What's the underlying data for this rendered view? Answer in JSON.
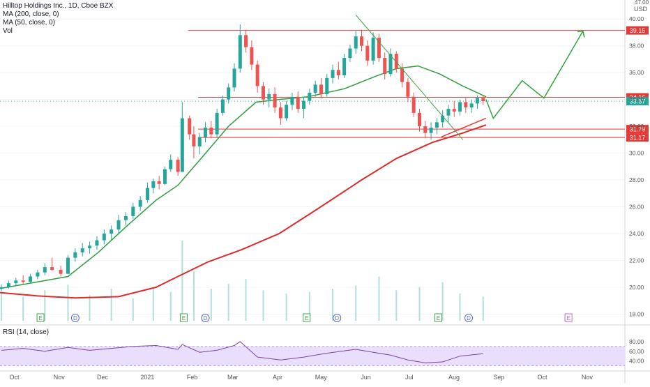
{
  "legend": {
    "title": "Hilltop Holdings Inc., 1D, Cboe BZX",
    "ma200": "MA (200, close, 0)",
    "ma50": "MA (50, close, 0)",
    "vol": "Vol",
    "rsi": "RSI (14, close)"
  },
  "price_axis": {
    "currency": "USD",
    "top_partial": "47.00",
    "ticks": [
      "40.00",
      "38.00",
      "36.00",
      "34.00",
      "32.00",
      "30.00",
      "28.00",
      "26.00",
      "24.00",
      "22.00",
      "20.00",
      "18.00"
    ]
  },
  "rsi_axis": {
    "ticks": [
      "80.00",
      "60.00",
      "40.00"
    ]
  },
  "time_axis": {
    "labels": [
      "Oct",
      "Nov",
      "Dec",
      "2021",
      "Feb",
      "Mar",
      "Apr",
      "May",
      "Jun",
      "Jul",
      "Aug",
      "Sep",
      "Oct",
      "Nov"
    ]
  },
  "colors": {
    "up": "#26a69a",
    "down": "#ef5350",
    "ma50": "#2e9e3a",
    "ma200": "#e02a2a",
    "level": "#e53935",
    "rsi": "#7e3fa6",
    "rsi_band": "#e9defc",
    "projection": "#2fa53a",
    "trend": "#43a047",
    "last_price": "#26a69a"
  },
  "chart_data": {
    "type": "candlestick",
    "title": "Hilltop Holdings Inc., 1D, Cboe BZX",
    "ylabel": "USD",
    "ylim": [
      17.5,
      41.0
    ],
    "x_range": [
      "2020-09-24",
      "2021-11-30"
    ],
    "last_price": 33.87,
    "levels": [
      {
        "label": "39.15",
        "value": 39.15,
        "from": "2021-02-01"
      },
      {
        "label": "34.16",
        "value": 34.16,
        "from": "2021-02-08"
      },
      {
        "label": "31.79",
        "value": 31.79,
        "from": "2021-02-08"
      },
      {
        "label": "31.17",
        "value": 31.17,
        "from": "2021-02-08"
      }
    ],
    "ma50": [
      [
        "2020-09-24",
        19.9
      ],
      [
        "2020-10-20",
        20.4
      ],
      [
        "2020-11-10",
        20.8
      ],
      [
        "2020-12-01",
        22.6
      ],
      [
        "2020-12-20",
        24.5
      ],
      [
        "2021-01-10",
        26.5
      ],
      [
        "2021-01-25",
        27.6
      ],
      [
        "2021-02-10",
        29.6
      ],
      [
        "2021-03-01",
        32.0
      ],
      [
        "2021-03-20",
        33.8
      ],
      [
        "2021-04-05",
        34.0
      ],
      [
        "2021-04-25",
        34.2
      ],
      [
        "2021-05-20",
        34.8
      ],
      [
        "2021-06-10",
        35.7
      ],
      [
        "2021-06-25",
        36.3
      ],
      [
        "2021-07-10",
        36.5
      ],
      [
        "2021-07-25",
        35.9
      ],
      [
        "2021-08-10",
        35.0
      ],
      [
        "2021-08-26",
        34.2
      ]
    ],
    "ma200": [
      [
        "2020-09-24",
        19.6
      ],
      [
        "2020-10-20",
        19.35
      ],
      [
        "2020-11-15",
        19.2
      ],
      [
        "2020-12-15",
        19.3
      ],
      [
        "2021-01-10",
        20.0
      ],
      [
        "2021-01-25",
        20.8
      ],
      [
        "2021-02-15",
        21.9
      ],
      [
        "2021-03-10",
        22.8
      ],
      [
        "2021-04-05",
        24.0
      ],
      [
        "2021-05-01",
        25.8
      ],
      [
        "2021-06-01",
        28.0
      ],
      [
        "2021-06-25",
        29.6
      ],
      [
        "2021-07-20",
        30.8
      ],
      [
        "2021-08-10",
        31.5
      ],
      [
        "2021-08-26",
        32.1
      ]
    ],
    "trendline": [
      [
        "2021-05-28",
        40.3
      ],
      [
        "2021-08-10",
        31.0
      ]
    ],
    "support_line": [
      [
        "2021-07-26",
        31.2
      ],
      [
        "2021-08-26",
        32.6
      ]
    ],
    "projection": [
      [
        "2021-08-26",
        34.0
      ],
      [
        "2021-08-31",
        32.6
      ],
      [
        "2021-09-20",
        35.4
      ],
      [
        "2021-10-05",
        34.1
      ],
      [
        "2021-11-01",
        39.1
      ]
    ],
    "candles": [
      [
        "2020-09-25",
        19.9,
        20.2,
        19.7,
        20.0
      ],
      [
        "2020-09-30",
        20.0,
        20.5,
        19.9,
        20.3
      ],
      [
        "2020-10-05",
        20.3,
        20.7,
        20.1,
        20.5
      ],
      [
        "2020-10-10",
        20.5,
        20.9,
        20.2,
        20.4
      ],
      [
        "2020-10-15",
        20.4,
        21.0,
        20.3,
        20.8
      ],
      [
        "2020-10-20",
        20.8,
        21.3,
        20.6,
        21.1
      ],
      [
        "2020-10-25",
        21.1,
        21.8,
        20.9,
        21.5
      ],
      [
        "2020-10-30",
        21.5,
        22.2,
        21.2,
        21.3
      ],
      [
        "2020-11-05",
        21.3,
        21.6,
        20.8,
        21.0
      ],
      [
        "2020-11-10",
        21.0,
        22.4,
        21.0,
        22.2
      ],
      [
        "2020-11-15",
        22.2,
        22.9,
        21.9,
        22.6
      ],
      [
        "2020-11-20",
        22.6,
        23.3,
        22.3,
        22.9
      ],
      [
        "2020-11-25",
        22.9,
        23.4,
        22.5,
        23.1
      ],
      [
        "2020-11-30",
        23.1,
        23.8,
        22.8,
        23.5
      ],
      [
        "2020-12-05",
        23.5,
        24.3,
        23.2,
        24.0
      ],
      [
        "2020-12-10",
        24.0,
        24.6,
        23.5,
        24.3
      ],
      [
        "2020-12-15",
        24.3,
        25.4,
        24.0,
        25.0
      ],
      [
        "2020-12-20",
        25.0,
        25.6,
        24.6,
        25.3
      ],
      [
        "2020-12-25",
        25.3,
        26.3,
        25.1,
        26.0
      ],
      [
        "2020-12-30",
        26.0,
        26.8,
        25.7,
        26.5
      ],
      [
        "2021-01-04",
        26.5,
        27.8,
        26.3,
        27.4
      ],
      [
        "2021-01-08",
        27.4,
        28.1,
        27.0,
        27.9
      ],
      [
        "2021-01-12",
        27.9,
        28.3,
        27.3,
        27.7
      ],
      [
        "2021-01-16",
        27.7,
        29.0,
        27.6,
        28.8
      ],
      [
        "2021-01-20",
        28.8,
        29.9,
        28.6,
        29.5
      ],
      [
        "2021-01-25",
        29.5,
        29.7,
        28.3,
        28.6
      ],
      [
        "2021-01-28",
        28.6,
        33.8,
        28.6,
        32.6
      ],
      [
        "2021-02-02",
        32.6,
        32.8,
        31.0,
        31.4
      ],
      [
        "2021-02-05",
        31.4,
        32.0,
        29.6,
        30.5
      ],
      [
        "2021-02-09",
        30.5,
        31.5,
        29.9,
        31.2
      ],
      [
        "2021-02-13",
        31.2,
        32.3,
        30.8,
        31.9
      ],
      [
        "2021-02-17",
        31.9,
        32.4,
        31.1,
        31.4
      ],
      [
        "2021-02-21",
        31.4,
        33.3,
        31.2,
        33.0
      ],
      [
        "2021-02-25",
        33.0,
        34.3,
        32.8,
        34.0
      ],
      [
        "2021-03-01",
        34.0,
        35.2,
        33.7,
        34.9
      ],
      [
        "2021-03-05",
        34.9,
        36.7,
        34.6,
        36.3
      ],
      [
        "2021-03-09",
        36.3,
        39.6,
        36.0,
        38.8
      ],
      [
        "2021-03-13",
        38.8,
        39.2,
        37.5,
        37.9
      ],
      [
        "2021-03-17",
        37.9,
        38.4,
        36.2,
        36.6
      ],
      [
        "2021-03-21",
        36.6,
        36.9,
        34.5,
        35.0
      ],
      [
        "2021-03-25",
        35.0,
        35.3,
        33.6,
        34.0
      ],
      [
        "2021-03-29",
        34.0,
        34.8,
        33.4,
        34.4
      ],
      [
        "2021-04-02",
        34.4,
        34.9,
        33.0,
        33.4
      ],
      [
        "2021-04-06",
        33.4,
        33.8,
        32.1,
        32.6
      ],
      [
        "2021-04-10",
        32.6,
        33.9,
        32.4,
        33.6
      ],
      [
        "2021-04-14",
        33.6,
        34.5,
        33.2,
        34.2
      ],
      [
        "2021-04-18",
        34.2,
        34.6,
        33.0,
        33.3
      ],
      [
        "2021-04-22",
        33.3,
        34.2,
        32.6,
        33.9
      ],
      [
        "2021-04-26",
        33.9,
        34.8,
        33.6,
        34.5
      ],
      [
        "2021-04-30",
        34.5,
        35.4,
        34.2,
        35.1
      ],
      [
        "2021-05-04",
        35.1,
        35.6,
        34.1,
        34.4
      ],
      [
        "2021-05-08",
        34.4,
        35.9,
        34.2,
        35.6
      ],
      [
        "2021-05-12",
        35.6,
        36.6,
        35.2,
        36.2
      ],
      [
        "2021-05-16",
        36.2,
        36.8,
        35.5,
        35.8
      ],
      [
        "2021-05-20",
        35.8,
        37.4,
        35.6,
        37.1
      ],
      [
        "2021-05-24",
        37.1,
        38.1,
        36.8,
        37.8
      ],
      [
        "2021-05-28",
        37.8,
        39.1,
        37.4,
        38.7
      ],
      [
        "2021-06-01",
        38.7,
        39.2,
        37.6,
        38.0
      ],
      [
        "2021-06-05",
        38.0,
        38.4,
        36.5,
        36.9
      ],
      [
        "2021-06-09",
        36.9,
        39.0,
        36.6,
        38.6
      ],
      [
        "2021-06-13",
        38.6,
        38.9,
        36.8,
        37.1
      ],
      [
        "2021-06-17",
        37.1,
        37.5,
        35.5,
        35.9
      ],
      [
        "2021-06-21",
        35.9,
        37.8,
        35.7,
        37.4
      ],
      [
        "2021-06-25",
        37.4,
        37.6,
        36.0,
        36.3
      ],
      [
        "2021-06-29",
        36.3,
        36.7,
        34.9,
        35.3
      ],
      [
        "2021-07-03",
        35.3,
        35.6,
        33.8,
        34.2
      ],
      [
        "2021-07-07",
        34.2,
        34.5,
        32.7,
        33.0
      ],
      [
        "2021-07-11",
        33.0,
        33.3,
        31.6,
        32.0
      ],
      [
        "2021-07-15",
        32.0,
        32.4,
        31.1,
        31.5
      ],
      [
        "2021-07-19",
        31.5,
        32.3,
        31.0,
        31.9
      ],
      [
        "2021-07-23",
        31.9,
        32.6,
        31.4,
        32.3
      ],
      [
        "2021-07-27",
        32.3,
        33.2,
        31.9,
        32.8
      ],
      [
        "2021-07-31",
        32.8,
        33.6,
        32.3,
        33.3
      ],
      [
        "2021-08-04",
        33.3,
        33.9,
        32.7,
        33.1
      ],
      [
        "2021-08-08",
        33.1,
        34.0,
        32.8,
        33.8
      ],
      [
        "2021-08-12",
        33.8,
        34.1,
        33.0,
        33.4
      ],
      [
        "2021-08-16",
        33.4,
        34.0,
        33.0,
        33.7
      ],
      [
        "2021-08-20",
        33.7,
        34.3,
        33.3,
        34.1
      ],
      [
        "2021-08-24",
        34.1,
        34.3,
        33.6,
        33.87
      ]
    ],
    "volume": [
      [
        "2020-09-25",
        0.35
      ],
      [
        "2020-10-10",
        0.3
      ],
      [
        "2020-10-25",
        0.38
      ],
      [
        "2020-11-10",
        0.45
      ],
      [
        "2020-11-25",
        0.32
      ],
      [
        "2020-12-10",
        0.4
      ],
      [
        "2020-12-25",
        0.28
      ],
      [
        "2021-01-08",
        0.42
      ],
      [
        "2021-01-20",
        0.36
      ],
      [
        "2021-01-28",
        1.0
      ],
      [
        "2021-02-05",
        0.62
      ],
      [
        "2021-02-17",
        0.4
      ],
      [
        "2021-03-01",
        0.46
      ],
      [
        "2021-03-13",
        0.52
      ],
      [
        "2021-03-25",
        0.38
      ],
      [
        "2021-04-10",
        0.34
      ],
      [
        "2021-04-26",
        0.36
      ],
      [
        "2021-05-12",
        0.4
      ],
      [
        "2021-05-28",
        0.44
      ],
      [
        "2021-06-13",
        0.55
      ],
      [
        "2021-06-25",
        0.38
      ],
      [
        "2021-07-11",
        0.42
      ],
      [
        "2021-07-27",
        0.48
      ],
      [
        "2021-08-08",
        0.34
      ],
      [
        "2021-08-24",
        0.3
      ]
    ],
    "rsi": {
      "ylim": [
        25,
        90
      ],
      "band": [
        30,
        70
      ],
      "values": [
        [
          "2020-09-25",
          62
        ],
        [
          "2020-10-10",
          66
        ],
        [
          "2020-10-25",
          60
        ],
        [
          "2020-11-10",
          68
        ],
        [
          "2020-11-25",
          62
        ],
        [
          "2020-12-10",
          66
        ],
        [
          "2020-12-25",
          70
        ],
        [
          "2021-01-10",
          72
        ],
        [
          "2021-01-25",
          64
        ],
        [
          "2021-01-28",
          74
        ],
        [
          "2021-02-09",
          58
        ],
        [
          "2021-02-21",
          62
        ],
        [
          "2021-03-05",
          72
        ],
        [
          "2021-03-09",
          80
        ],
        [
          "2021-03-21",
          48
        ],
        [
          "2021-04-06",
          42
        ],
        [
          "2021-04-22",
          48
        ],
        [
          "2021-05-08",
          56
        ],
        [
          "2021-05-28",
          64
        ],
        [
          "2021-06-09",
          58
        ],
        [
          "2021-06-21",
          52
        ],
        [
          "2021-07-03",
          42
        ],
        [
          "2021-07-15",
          36
        ],
        [
          "2021-07-27",
          38
        ],
        [
          "2021-08-08",
          50
        ],
        [
          "2021-08-24",
          55
        ]
      ]
    },
    "events": [
      {
        "label": "E",
        "date": "2020-10-22"
      },
      {
        "label": "D",
        "date": "2020-11-15"
      },
      {
        "label": "E",
        "date": "2021-01-29"
      },
      {
        "label": "D",
        "date": "2021-02-13"
      },
      {
        "label": "E",
        "date": "2021-04-24"
      },
      {
        "label": "D",
        "date": "2021-05-15"
      },
      {
        "label": "E",
        "date": "2021-07-24"
      },
      {
        "label": "D",
        "date": "2021-08-14"
      },
      {
        "label": "E",
        "date": "2021-10-22",
        "future": true
      }
    ]
  }
}
